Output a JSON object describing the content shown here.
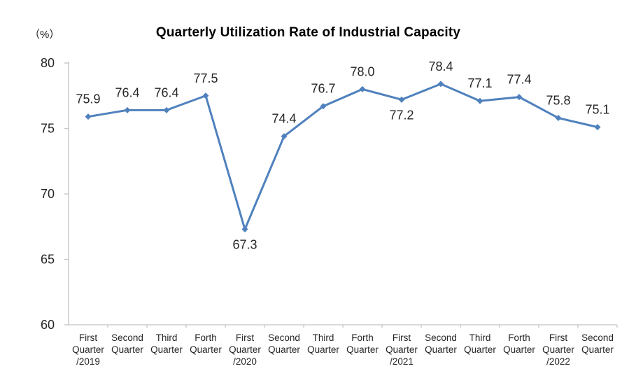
{
  "chart": {
    "title": "Quarterly Utilization Rate of Industrial Capacity",
    "unit_label": "（%）"
  },
  "chart_data": {
    "type": "line",
    "title": "Quarterly Utilization Rate of Industrial Capacity",
    "ylabel": "（%）",
    "xlabel": "",
    "categories": [
      "First Quarter /2019",
      "Second Quarter",
      "Third Quarter",
      "Forth Quarter",
      "First Quarter /2020",
      "Second Quarter",
      "Third Quarter",
      "Forth Quarter",
      "First Quarter /2021",
      "Second Quarter",
      "Third Quarter",
      "Forth Quarter",
      "First Quarter /2022",
      "Second Quarter"
    ],
    "values": [
      75.9,
      76.4,
      76.4,
      77.5,
      67.3,
      74.4,
      76.7,
      78.0,
      77.2,
      78.4,
      77.1,
      77.4,
      75.8,
      75.1
    ],
    "label_positions": [
      "above",
      "above",
      "above",
      "above",
      "below",
      "above",
      "above",
      "above",
      "below",
      "above",
      "above",
      "above",
      "above",
      "above"
    ],
    "y_ticks": [
      60,
      65,
      70,
      75,
      80
    ],
    "ylim": [
      60,
      80
    ],
    "grid": false,
    "legend": "none",
    "marker": "diamond",
    "line_color": "#4F81BD",
    "axis_color": "#C4C4C4",
    "text_color": "#262626"
  }
}
